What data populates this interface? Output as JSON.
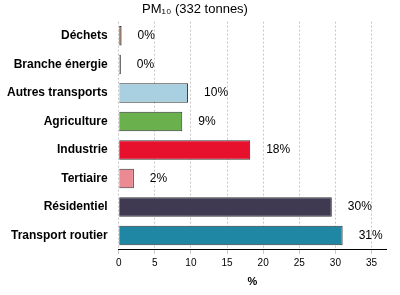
{
  "chart_data": {
    "type": "bar",
    "orientation": "horizontal",
    "title": "PM₁₀ (332 tonnes)",
    "x_label": "%",
    "categories": [
      "Déchets",
      "Branche énergie",
      "Autres transports",
      "Agriculture",
      "Industrie",
      "Tertiaire",
      "Résidentiel",
      "Transport routier"
    ],
    "values": [
      0.4,
      0.3,
      9.6,
      8.8,
      18.2,
      2.1,
      29.5,
      31.0
    ],
    "value_labels": [
      "0%",
      "0%",
      "10%",
      "9%",
      "18%",
      "2%",
      "30%",
      "31%"
    ],
    "colors": [
      "#8b5a3c",
      "#c9a227",
      "#a9d0e0",
      "#6ab04c",
      "#e8112d",
      "#eb8a92",
      "#3f3a52",
      "#1f87a3"
    ],
    "xlim": [
      0,
      37
    ],
    "xticks": [
      0,
      5,
      10,
      15,
      20,
      25,
      30,
      35
    ],
    "grid": true,
    "data_labels": true
  }
}
